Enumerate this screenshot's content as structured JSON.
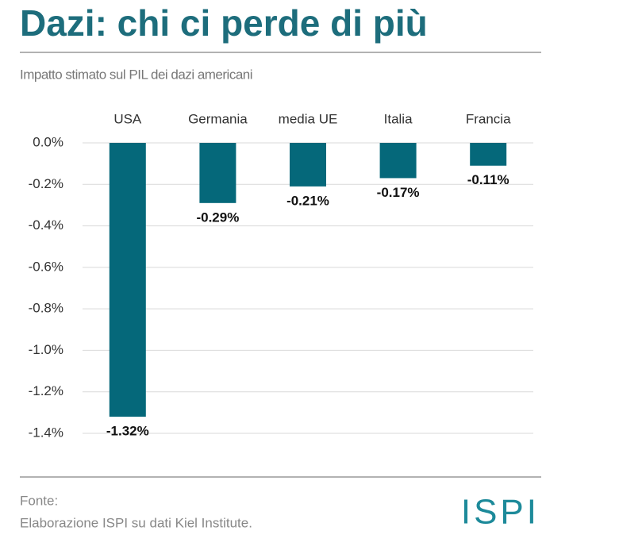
{
  "chart_data": {
    "type": "bar",
    "title": "Dazi: chi ci perde di più",
    "subtitle": "Impatto stimato sul PIL dei dazi americani",
    "categories": [
      "USA",
      "Germania",
      "media UE",
      "Italia",
      "Francia"
    ],
    "values": [
      -1.32,
      -0.29,
      -0.21,
      -0.17,
      -0.11
    ],
    "value_labels": [
      "-1.32%",
      "-0.29%",
      "-0.21%",
      "-0.17%",
      "-0.11%"
    ],
    "color": "#05687a",
    "ylim": [
      -1.4,
      0
    ],
    "yticks": [
      {
        "value": 0,
        "label": "0.0%"
      },
      {
        "value": -0.2,
        "label": "-0.2%"
      },
      {
        "value": -0.4,
        "label": "-0.4%"
      },
      {
        "value": -0.6,
        "label": "-0.6%"
      },
      {
        "value": -0.8,
        "label": "-0.8%"
      },
      {
        "value": -1.0,
        "label": "-1.0%"
      },
      {
        "value": -1.2,
        "label": "-1.2%"
      },
      {
        "value": -1.4,
        "label": "-1.4%"
      }
    ],
    "grid": true,
    "source_label": "Fonte:",
    "source": "Elaborazione ISPI su dati Kiel Institute.",
    "logo": "ISPI"
  }
}
